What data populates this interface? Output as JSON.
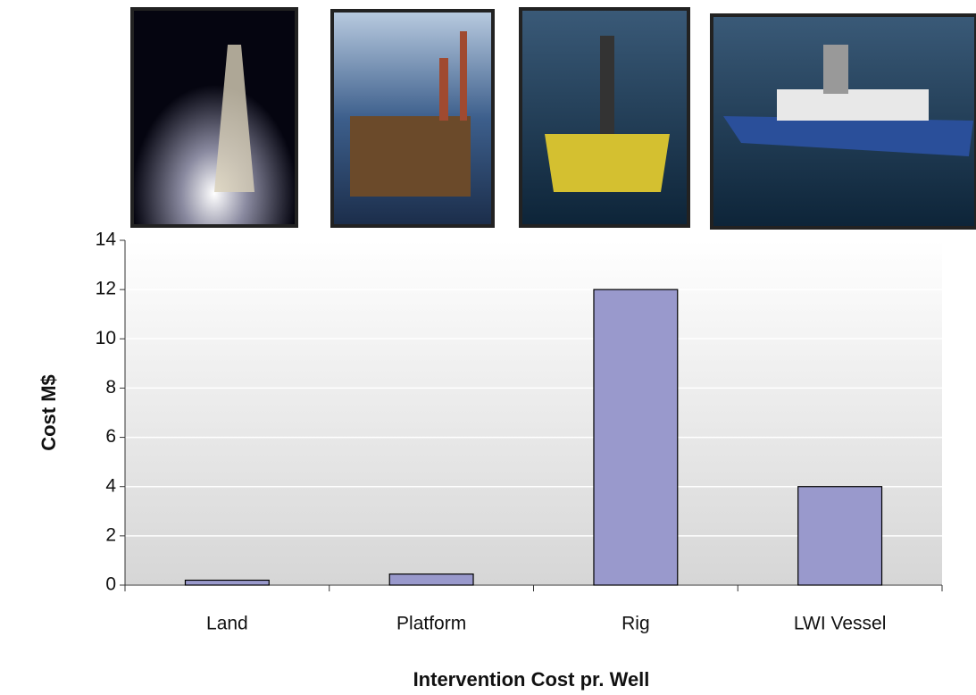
{
  "chart_data": {
    "type": "bar",
    "categories": [
      "Land",
      "Platform",
      "Rig",
      "LWI Vessel"
    ],
    "values": [
      0.2,
      0.45,
      12,
      4
    ],
    "color": "#9999cc",
    "ylim": [
      0,
      14
    ],
    "yticks": [
      0,
      2,
      4,
      6,
      8,
      10,
      12,
      14
    ],
    "grid": true,
    "xlabel": "Intervention Cost pr. Well",
    "ylabel": "Cost M$"
  }
}
